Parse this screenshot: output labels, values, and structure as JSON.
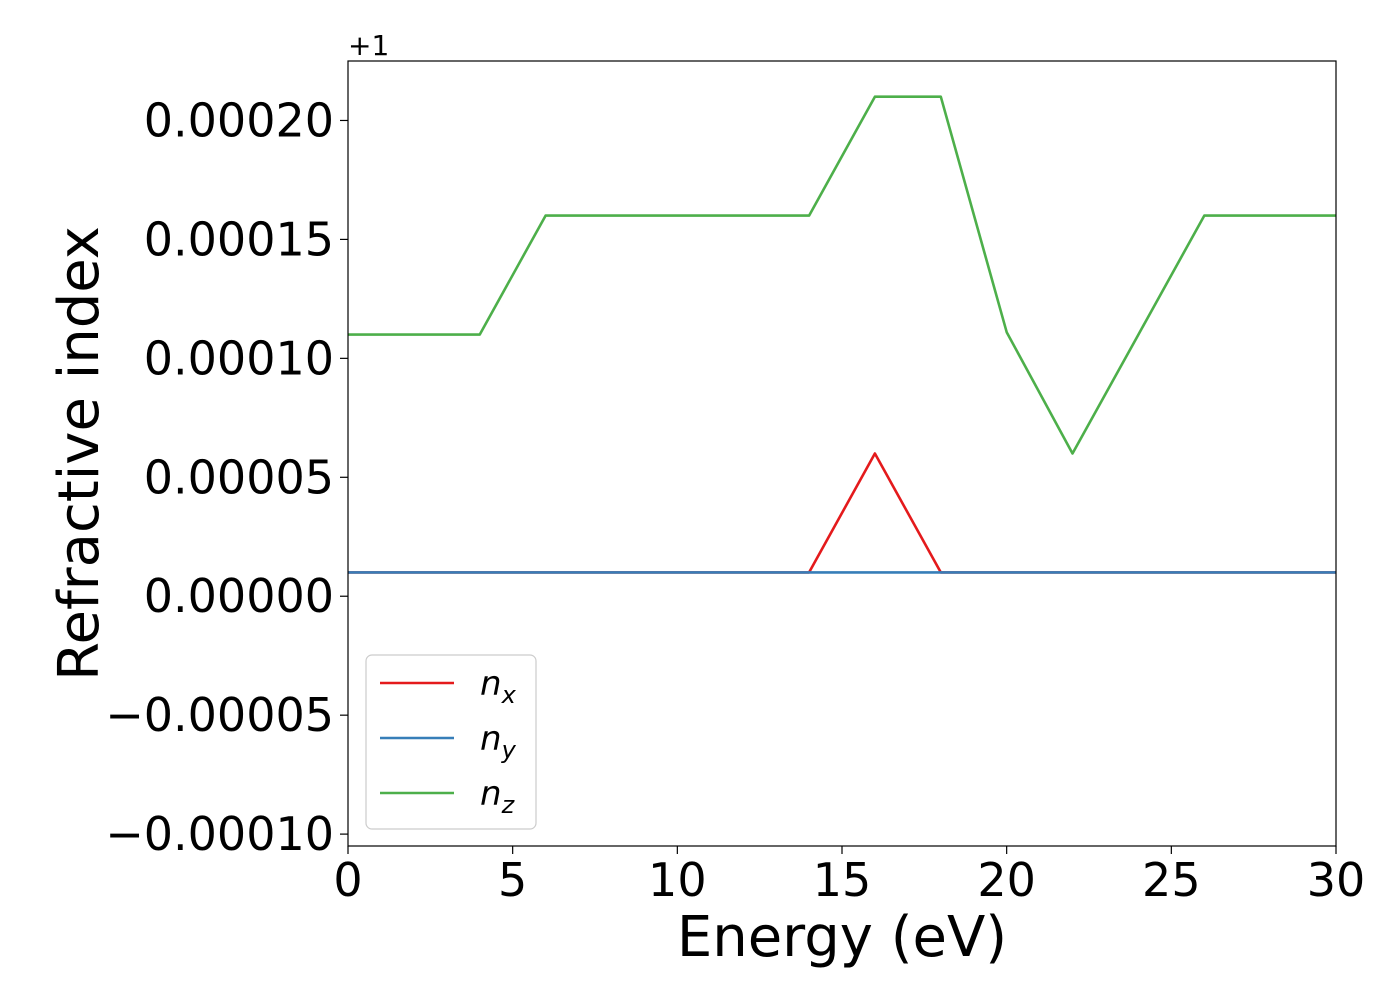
{
  "chart_data": {
    "type": "line",
    "title": "",
    "xlabel": "Energy (eV)",
    "ylabel": "Refractive index",
    "y_offset_label": "+1",
    "xlim": [
      0,
      30
    ],
    "ylim": [
      -0.000105,
      0.000225
    ],
    "x_ticks": [
      0,
      5,
      10,
      15,
      20,
      25,
      30
    ],
    "x_tick_labels": [
      "0",
      "5",
      "10",
      "15",
      "20",
      "25",
      "30"
    ],
    "y_ticks": [
      -0.0001,
      -5e-05,
      0,
      5e-05,
      0.0001,
      0.00015,
      0.0002
    ],
    "y_tick_labels": [
      "−0.00010",
      "−0.00005",
      "0.00000",
      "0.00005",
      "0.00010",
      "0.00015",
      "0.00020"
    ],
    "grid": false,
    "legend_position": "lower-left",
    "series": [
      {
        "name": "n",
        "subscript": "x",
        "color": "#e41a1c",
        "x": [
          0,
          2,
          4,
          6,
          8,
          10,
          12,
          14,
          16,
          18,
          20,
          22,
          24,
          26,
          28,
          30
        ],
        "y": [
          1e-05,
          1e-05,
          1e-05,
          1e-05,
          1e-05,
          1e-05,
          1e-05,
          1e-05,
          6e-05,
          1e-05,
          1e-05,
          1e-05,
          1e-05,
          1e-05,
          1e-05,
          1e-05
        ]
      },
      {
        "name": "n",
        "subscript": "y",
        "color": "#377eb8",
        "x": [
          0,
          2,
          4,
          6,
          8,
          10,
          12,
          14,
          16,
          18,
          20,
          22,
          24,
          26,
          28,
          30
        ],
        "y": [
          1e-05,
          1e-05,
          1e-05,
          1e-05,
          1e-05,
          1e-05,
          1e-05,
          1e-05,
          1e-05,
          1e-05,
          1e-05,
          1e-05,
          1e-05,
          1e-05,
          1e-05,
          1e-05
        ]
      },
      {
        "name": "n",
        "subscript": "z",
        "color": "#4daf4a",
        "x": [
          0,
          2,
          4,
          6,
          8,
          10,
          12,
          14,
          16,
          18,
          20,
          22,
          24,
          26,
          28,
          30
        ],
        "y": [
          0.00011,
          0.00011,
          0.00011,
          0.00016,
          0.00016,
          0.00016,
          0.00016,
          0.00016,
          0.00021,
          0.00021,
          0.000111,
          6e-05,
          0.00011,
          0.00016,
          0.00016,
          0.00016
        ]
      }
    ]
  }
}
